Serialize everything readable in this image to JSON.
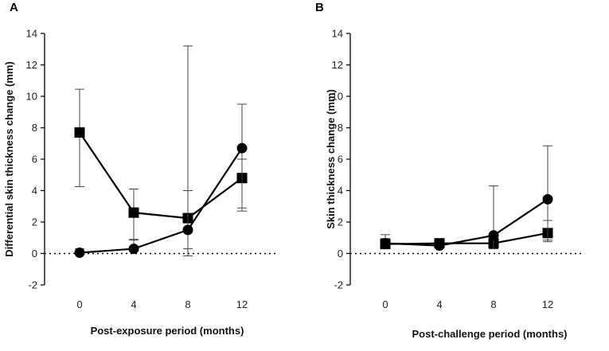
{
  "chart_data": [
    {
      "type": "line",
      "panel_label": "A",
      "xlabel": "Post-exposure period (months)",
      "ylabel": "Differential skin thickness change (mm)",
      "categories": [
        "0",
        "4",
        "8",
        "12"
      ],
      "yticks": [
        "-2",
        "0",
        "2",
        "4",
        "6",
        "8",
        "10",
        "12",
        "14"
      ],
      "ylim": [
        -2,
        14
      ],
      "reference_line": 0,
      "series": [
        {
          "name": "square",
          "marker": "square",
          "values": [
            7.7,
            2.6,
            2.25,
            4.8
          ],
          "err_low": [
            4.25,
            0.85,
            0.3,
            2.7
          ],
          "err_high": [
            10.45,
            4.1,
            4.0,
            6.0
          ]
        },
        {
          "name": "circle",
          "marker": "circle",
          "values": [
            0.05,
            0.3,
            1.5,
            6.7
          ],
          "err_low": [
            -0.05,
            0.15,
            -0.15,
            2.9
          ],
          "err_high": [
            0.3,
            0.9,
            13.2,
            9.5
          ]
        }
      ]
    },
    {
      "type": "line",
      "panel_label": "B",
      "xlabel": "Post-challenge period (months)",
      "ylabel": "Skin thickness change (mm)",
      "categories": [
        "0",
        "4",
        "8",
        "12"
      ],
      "yticks": [
        "-2",
        "0",
        "2",
        "4",
        "6",
        "8",
        "10",
        "12",
        "14"
      ],
      "ylim": [
        -2,
        14
      ],
      "reference_line": 0,
      "series": [
        {
          "name": "square",
          "marker": "square",
          "values": [
            0.6,
            0.65,
            0.65,
            1.3
          ],
          "err_low": [
            0.35,
            0.55,
            0.3,
            0.85
          ],
          "err_high": [
            0.95,
            0.75,
            1.1,
            2.1
          ]
        },
        {
          "name": "circle",
          "marker": "circle",
          "values": [
            0.65,
            0.5,
            1.15,
            3.45
          ],
          "err_low": [
            0.5,
            0.4,
            0.3,
            0.75
          ],
          "err_high": [
            1.2,
            0.6,
            4.3,
            6.85
          ]
        }
      ]
    }
  ]
}
